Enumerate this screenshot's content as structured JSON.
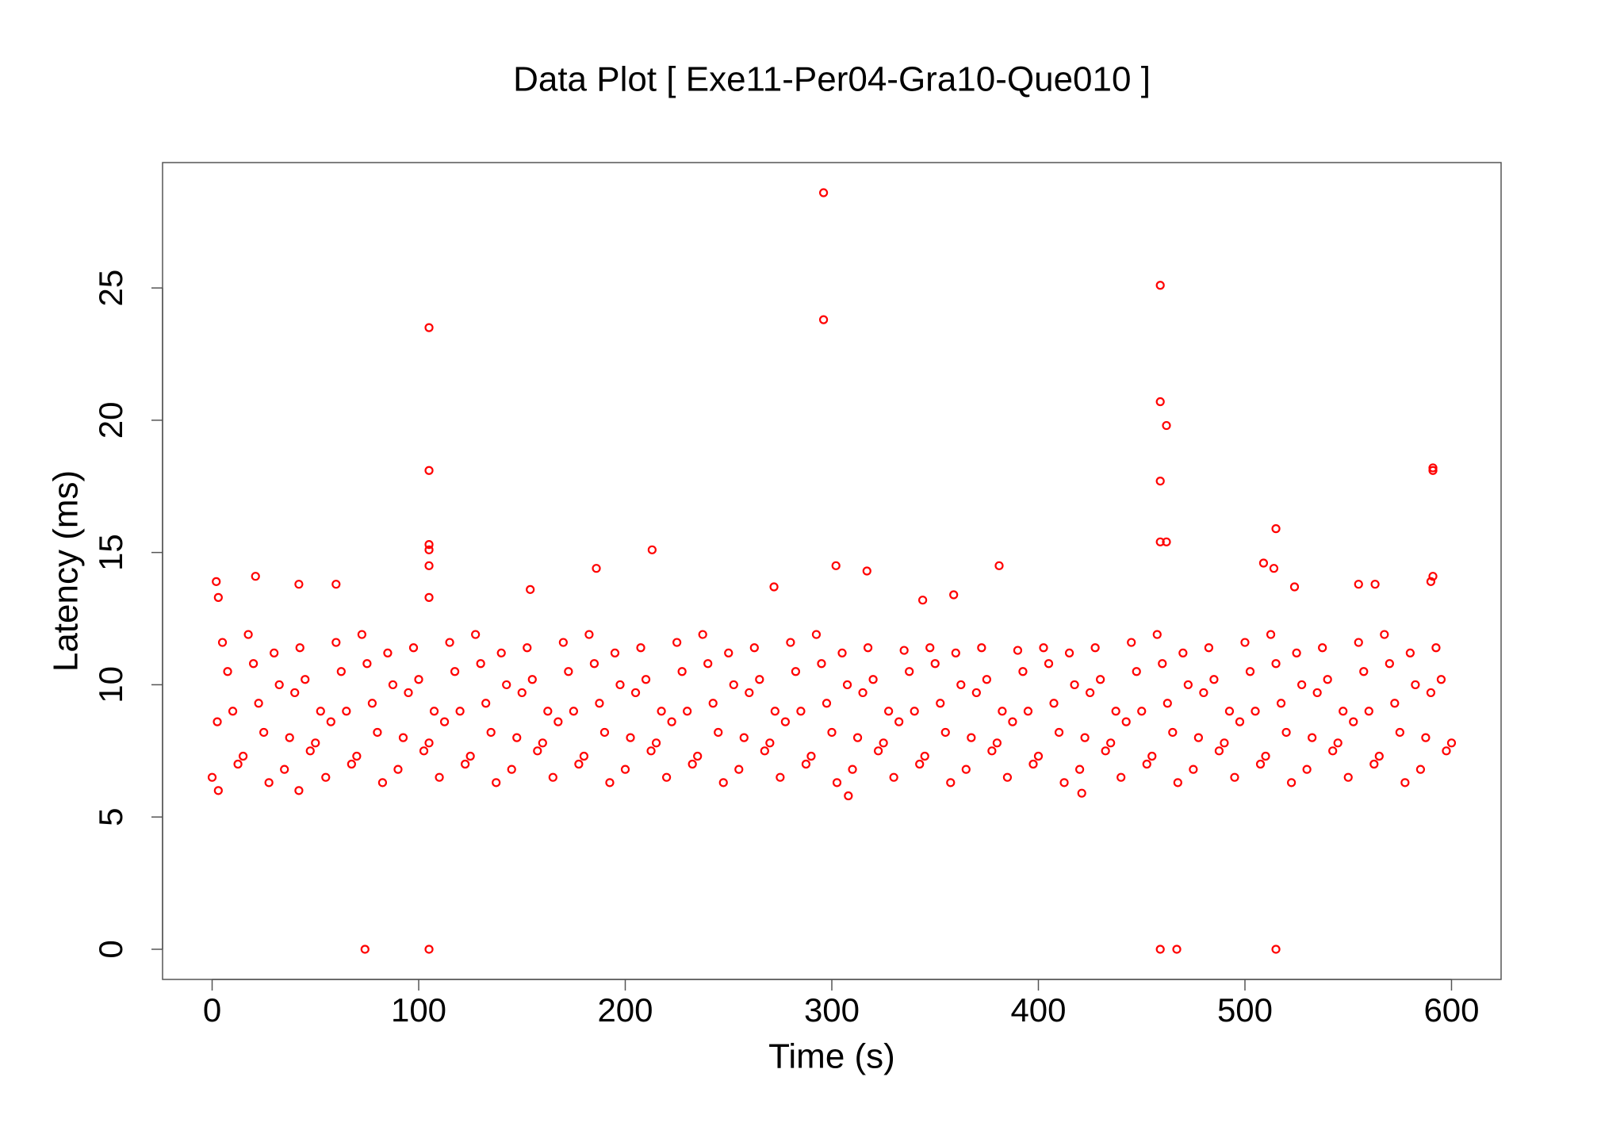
{
  "chart_data": {
    "type": "scatter",
    "title": "Data Plot [ Exe11-Per04-Gra10-Que010 ]",
    "x_label": "Time (s)",
    "y_label": "Latency (ms)",
    "color": "#ff0000",
    "xlim": [
      -24,
      624
    ],
    "ylim": [
      -1.14,
      29.74
    ],
    "xticks": [
      0,
      100,
      200,
      300,
      400,
      500,
      600
    ],
    "yticks": [
      0,
      5,
      10,
      15,
      20,
      25
    ],
    "x": [
      0,
      5,
      10,
      15,
      20,
      25,
      30,
      35,
      40,
      45,
      50,
      55,
      60,
      65,
      70,
      75,
      80,
      85,
      90,
      95,
      100,
      105,
      110,
      115,
      120,
      125,
      130,
      135,
      140,
      145,
      150,
      155,
      160,
      165,
      170,
      175,
      180,
      185,
      190,
      195,
      200,
      205,
      210,
      215,
      220,
      225,
      230,
      235,
      240,
      245,
      250,
      255,
      260,
      265,
      270,
      275,
      280,
      285,
      290,
      295,
      300,
      305,
      310,
      315,
      320,
      325,
      330,
      335,
      340,
      345,
      350,
      355,
      360,
      365,
      370,
      375,
      380,
      385,
      390,
      395,
      400,
      405,
      410,
      415,
      420,
      425,
      430,
      435,
      440,
      445,
      450,
      455,
      460,
      465,
      470,
      475,
      480,
      485,
      490,
      495,
      500,
      505,
      510,
      515,
      520,
      525,
      530,
      535,
      540,
      545,
      550,
      555,
      560,
      565,
      570,
      575,
      580,
      585,
      590,
      595,
      600,
      2.5,
      7.5,
      12.5,
      17.5,
      22.5,
      27.5,
      32.5,
      37.5,
      42.5,
      47.5,
      52.5,
      57.5,
      62.5,
      67.5,
      72.5,
      77.5,
      82.5,
      87.5,
      92.5,
      97.5,
      102.5,
      107.5,
      112.5,
      117.5,
      122.5,
      127.5,
      132.5,
      137.5,
      142.5,
      147.5,
      152.5,
      157.5,
      162.5,
      167.5,
      172.5,
      177.5,
      182.5,
      187.5,
      192.5,
      197.5,
      202.5,
      207.5,
      212.5,
      217.5,
      222.5,
      227.5,
      232.5,
      237.5,
      242.5,
      247.5,
      252.5,
      257.5,
      262.5,
      267.5,
      272.5,
      277.5,
      282.5,
      287.5,
      292.5,
      297.5,
      302.5,
      307.5,
      312.5,
      317.5,
      322.5,
      327.5,
      332.5,
      337.5,
      342.5,
      347.5,
      352.5,
      357.5,
      362.5,
      367.5,
      372.5,
      377.5,
      382.5,
      387.5,
      392.5,
      397.5,
      402.5,
      407.5,
      412.5,
      417.5,
      422.5,
      427.5,
      432.5,
      437.5,
      442.5,
      447.5,
      452.5,
      457.5,
      462.5,
      467.5,
      472.5,
      477.5,
      482.5,
      487.5,
      492.5,
      497.5,
      502.5,
      507.5,
      512.5,
      517.5,
      522.5,
      527.5,
      532.5,
      537.5,
      542.5,
      547.5,
      552.5,
      557.5,
      562.5,
      567.5,
      572.5,
      577.5,
      582.5,
      587.5,
      592.5,
      597.5,
      2,
      3,
      21,
      74,
      105,
      105,
      105,
      105,
      105,
      105,
      105,
      213,
      186,
      296,
      296,
      302,
      317,
      381,
      359,
      344,
      459,
      459,
      462,
      459,
      459,
      462,
      459,
      467,
      515,
      515,
      509,
      514,
      591,
      591,
      591,
      590,
      524,
      555,
      563,
      154,
      60,
      42,
      272,
      308,
      421,
      3,
      42
    ],
    "values": [
      6.5,
      11.6,
      9.0,
      7.3,
      10.8,
      8.2,
      11.2,
      6.8,
      9.7,
      10.2,
      7.8,
      6.5,
      11.6,
      9.0,
      7.3,
      10.8,
      8.2,
      11.2,
      6.8,
      9.7,
      10.2,
      7.8,
      6.5,
      11.6,
      9.0,
      7.3,
      10.8,
      8.2,
      11.2,
      6.8,
      9.7,
      10.2,
      7.8,
      6.5,
      11.6,
      9.0,
      7.3,
      10.8,
      8.2,
      11.2,
      6.8,
      9.7,
      10.2,
      7.8,
      6.5,
      11.6,
      9.0,
      7.3,
      10.8,
      8.2,
      11.2,
      6.8,
      9.7,
      10.2,
      7.8,
      6.5,
      11.6,
      9.0,
      7.3,
      10.8,
      8.2,
      11.2,
      6.8,
      9.7,
      10.2,
      7.8,
      6.5,
      11.3,
      9.0,
      7.3,
      10.8,
      8.2,
      11.2,
      6.8,
      9.7,
      10.2,
      7.8,
      6.5,
      11.3,
      9.0,
      7.3,
      10.8,
      8.2,
      11.2,
      6.8,
      9.7,
      10.2,
      7.8,
      6.5,
      11.6,
      9.0,
      7.3,
      10.8,
      8.2,
      11.2,
      6.8,
      9.7,
      10.2,
      7.8,
      6.5,
      11.6,
      9.0,
      7.3,
      10.8,
      8.2,
      11.2,
      6.8,
      9.7,
      10.2,
      7.8,
      6.5,
      11.6,
      9.0,
      7.3,
      10.8,
      8.2,
      11.2,
      6.8,
      9.7,
      10.2,
      7.8,
      8.6,
      10.5,
      7.0,
      11.9,
      9.3,
      6.3,
      10.0,
      8.0,
      11.4,
      7.5,
      9.0,
      8.6,
      10.5,
      7.0,
      11.9,
      9.3,
      6.3,
      10.0,
      8.0,
      11.4,
      7.5,
      9.0,
      8.6,
      10.5,
      7.0,
      11.9,
      9.3,
      6.3,
      10.0,
      8.0,
      11.4,
      7.5,
      9.0,
      8.6,
      10.5,
      7.0,
      11.9,
      9.3,
      6.3,
      10.0,
      8.0,
      11.4,
      7.5,
      9.0,
      8.6,
      10.5,
      7.0,
      11.9,
      9.3,
      6.3,
      10.0,
      8.0,
      11.4,
      7.5,
      9.0,
      8.6,
      10.5,
      7.0,
      11.9,
      9.3,
      6.3,
      10.0,
      8.0,
      11.4,
      7.5,
      9.0,
      8.6,
      10.5,
      7.0,
      11.4,
      9.3,
      6.3,
      10.0,
      8.0,
      11.4,
      7.5,
      9.0,
      8.6,
      10.5,
      7.0,
      11.4,
      9.3,
      6.3,
      10.0,
      8.0,
      11.4,
      7.5,
      9.0,
      8.6,
      10.5,
      7.0,
      11.9,
      9.3,
      6.3,
      10.0,
      8.0,
      11.4,
      7.5,
      9.0,
      8.6,
      10.5,
      7.0,
      11.9,
      9.3,
      6.3,
      10.0,
      8.0,
      11.4,
      7.5,
      9.0,
      8.6,
      10.5,
      7.0,
      11.9,
      9.3,
      6.3,
      10.0,
      8.0,
      11.4,
      7.5,
      13.9,
      13.3,
      14.1,
      0,
      0,
      23.5,
      18.1,
      15.3,
      15.1,
      14.5,
      13.3,
      15.1,
      14.4,
      28.6,
      23.8,
      14.5,
      14.3,
      14.5,
      13.4,
      13.2,
      25.1,
      20.7,
      19.8,
      17.7,
      15.4,
      15.4,
      0,
      0,
      0,
      15.9,
      14.6,
      14.4,
      18.2,
      18.1,
      14.1,
      13.9,
      13.7,
      13.8,
      13.8,
      13.6,
      13.8,
      13.8,
      13.7,
      5.8,
      5.9,
      6.0,
      6.0
    ]
  }
}
